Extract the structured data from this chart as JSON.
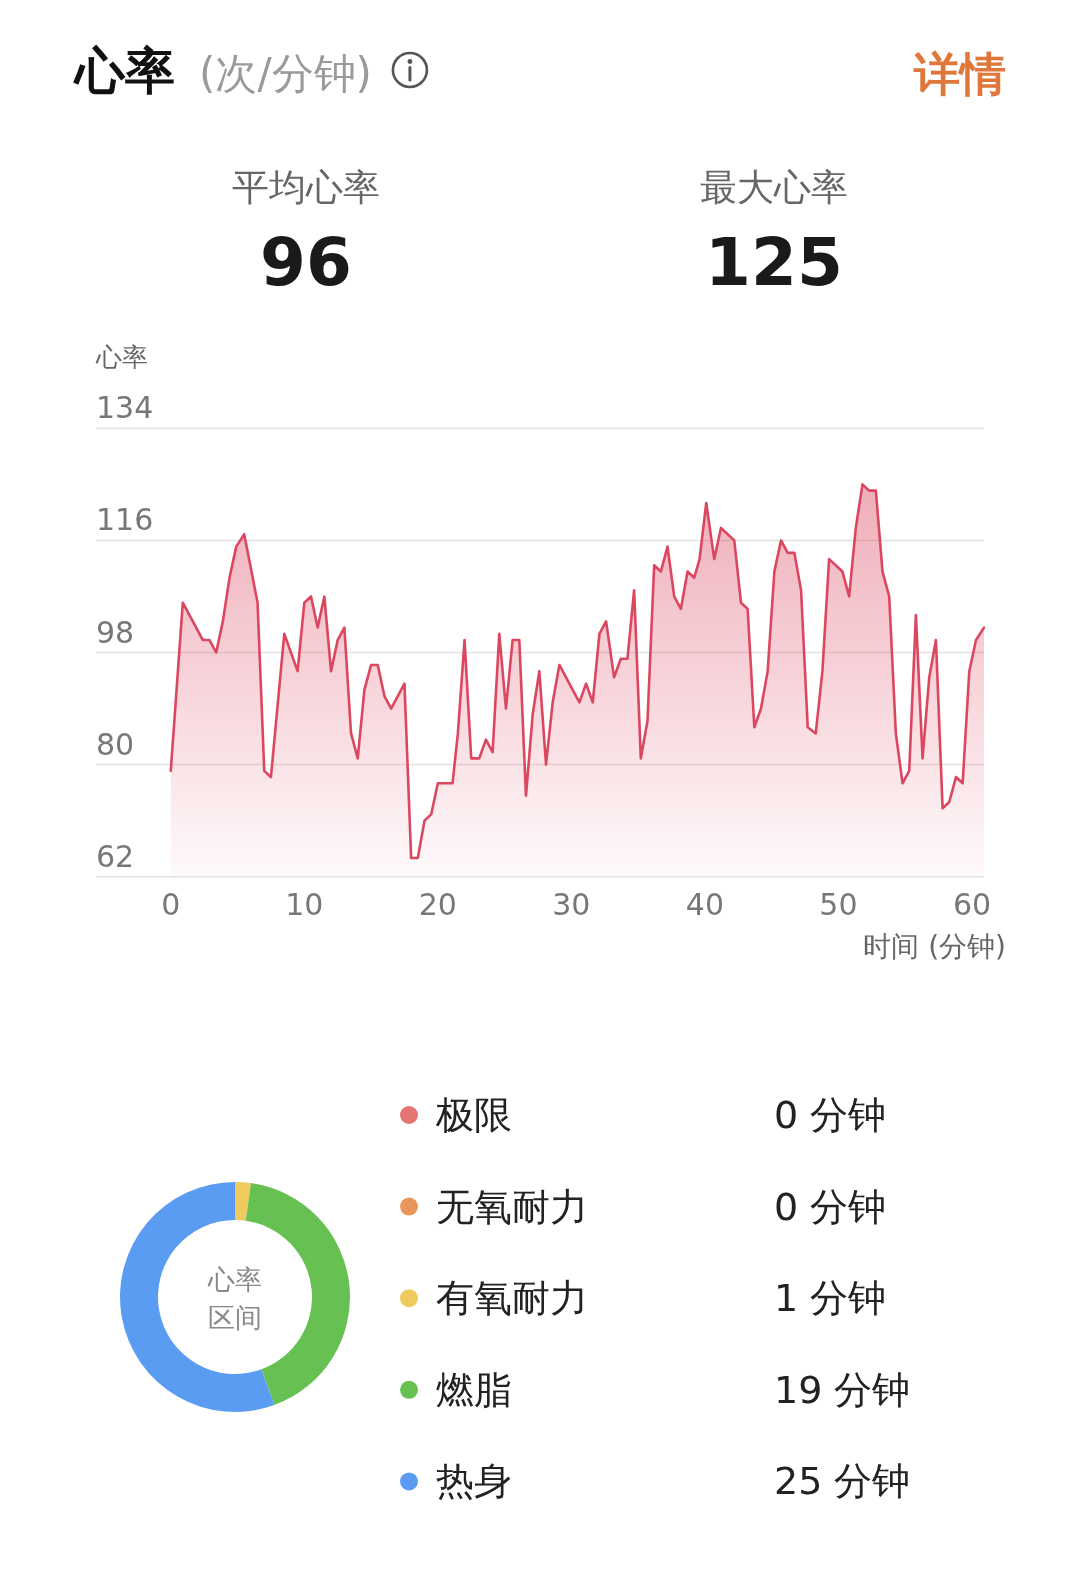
{
  "chart_data": [
    {
      "type": "other",
      "title": "心率",
      "subtitle": "(次/分钟)",
      "annotations": [
        "详情",
        "平均心率",
        "96",
        "最大心率",
        "125"
      ]
    },
    {
      "type": "area",
      "ylabel": "心率",
      "xlabel": "时间 (分钟)",
      "color": "#dc4760",
      "x": [
        0,
        0.9,
        2.4,
        2.9,
        3.4,
        3.9,
        4.4,
        4.9,
        5.5,
        6.5,
        7.0,
        7.5,
        8.5,
        9.5,
        10.0,
        10.5,
        11.0,
        11.5,
        12.0,
        12.5,
        13.0,
        13.5,
        14.0,
        14.5,
        15.0,
        15.5,
        16.0,
        16.5,
        17.5,
        18.0,
        18.5,
        19.0,
        19.5,
        20.0,
        21.1,
        21.5,
        22.0,
        22.5,
        23.1,
        23.6,
        24.1,
        24.6,
        25.1,
        25.6,
        26.1,
        26.6,
        27.1,
        27.6,
        28.1,
        28.6,
        29.1,
        30.6,
        31.1,
        31.6,
        32.1,
        32.6,
        33.2,
        33.7,
        34.2,
        34.7,
        35.2,
        35.7,
        36.2,
        36.7,
        37.2,
        37.7,
        38.2,
        38.7,
        39.2,
        39.6,
        40.1,
        40.7,
        41.2,
        42.2,
        42.7,
        43.2,
        43.7,
        44.2,
        44.7,
        45.2,
        45.7,
        46.2,
        46.7,
        47.2,
        47.7,
        48.3,
        48.8,
        49.3,
        50.3,
        50.8,
        51.3,
        51.8,
        52.3,
        52.8,
        53.3,
        53.8,
        54.3,
        54.8,
        55.3,
        55.8,
        56.3,
        56.8,
        57.3,
        57.8,
        58.3,
        58.8,
        59.3,
        59.8,
        60.3,
        60.9
      ],
      "values": [
        79,
        106,
        100,
        100,
        98,
        103,
        110,
        115,
        117,
        106,
        79,
        78,
        101,
        95,
        106,
        107,
        102,
        107,
        95,
        100,
        102,
        85,
        81,
        92,
        96,
        96,
        91,
        89,
        93,
        65,
        65,
        71,
        72,
        77,
        77,
        85,
        100,
        81,
        81,
        84,
        82,
        101,
        89,
        100,
        100,
        75,
        88,
        95,
        80,
        90,
        96,
        90,
        93,
        90,
        101,
        103,
        94,
        97,
        97,
        108,
        81,
        87,
        112,
        111,
        115,
        107,
        105,
        111,
        110,
        113,
        122,
        113,
        118,
        116,
        106,
        105,
        86,
        89,
        95,
        111,
        116,
        114,
        114,
        108,
        86,
        85,
        95,
        113,
        111,
        107,
        118,
        125,
        124,
        124,
        111,
        107,
        85,
        77,
        79,
        104,
        81,
        94,
        100,
        73,
        74,
        78,
        77,
        95,
        100,
        102
      ],
      "xlim": [
        -5.6,
        60.9
      ],
      "ylim": [
        62,
        134
      ],
      "xticks": [
        0,
        10,
        20,
        30,
        40,
        50,
        60
      ],
      "yticks": [
        62,
        80,
        98,
        116,
        134
      ],
      "grid": "y"
    },
    {
      "type": "donut",
      "title": "心率区间",
      "categories": [
        "极限",
        "无氧耐力",
        "有氧耐力",
        "燃脂",
        "热身"
      ],
      "values": [
        0,
        0,
        1,
        19,
        25
      ],
      "colors": [
        "#e57373",
        "#e8965a",
        "#eecb5c",
        "#66c152",
        "#5b9cf3"
      ],
      "value_labels": [
        "0 分钟",
        "0 分钟",
        "1 分钟",
        "19 分钟",
        "25 分钟"
      ],
      "legend": "right"
    }
  ]
}
